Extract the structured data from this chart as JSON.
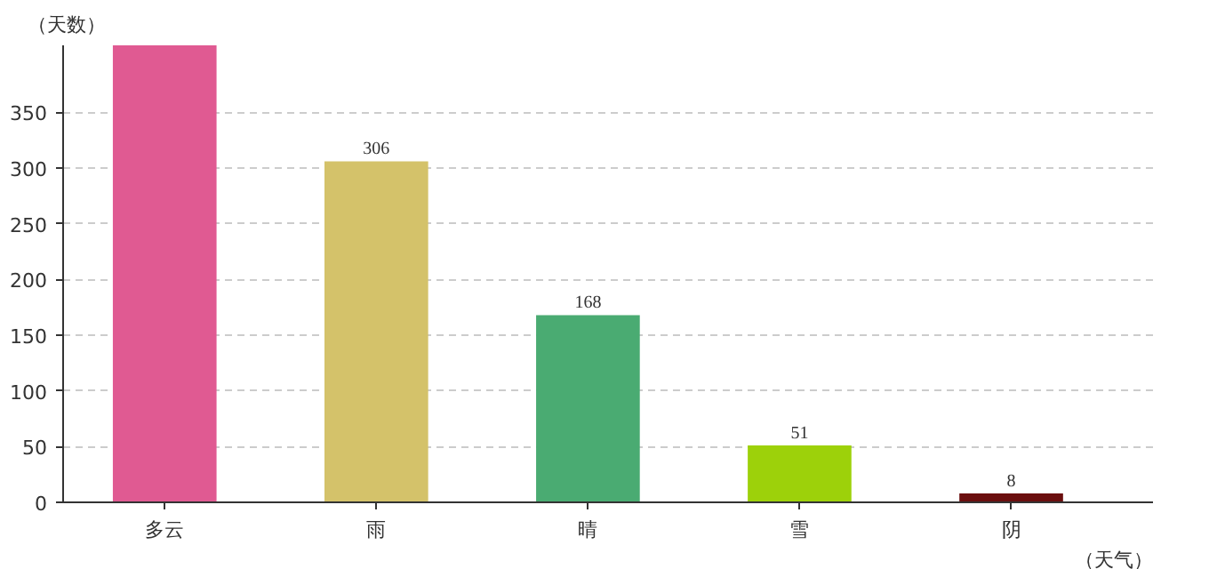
{
  "chart_data": {
    "type": "bar",
    "xlabel": "（天气）",
    "ylabel": "（天数）",
    "categories": [
      "多云",
      "雨",
      "晴",
      "雪",
      "阴"
    ],
    "values": [
      410,
      306,
      168,
      51,
      8
    ],
    "value_labels": [
      null,
      "306",
      "168",
      "51",
      "8"
    ],
    "colors": [
      "#e05a92",
      "#d4c26a",
      "#4aab72",
      "#9dd10a",
      "#6b0f0f"
    ],
    "ylim": [
      0,
      410
    ],
    "yticks": [
      0,
      50,
      100,
      150,
      200,
      250,
      300,
      350
    ],
    "grid": "y"
  }
}
